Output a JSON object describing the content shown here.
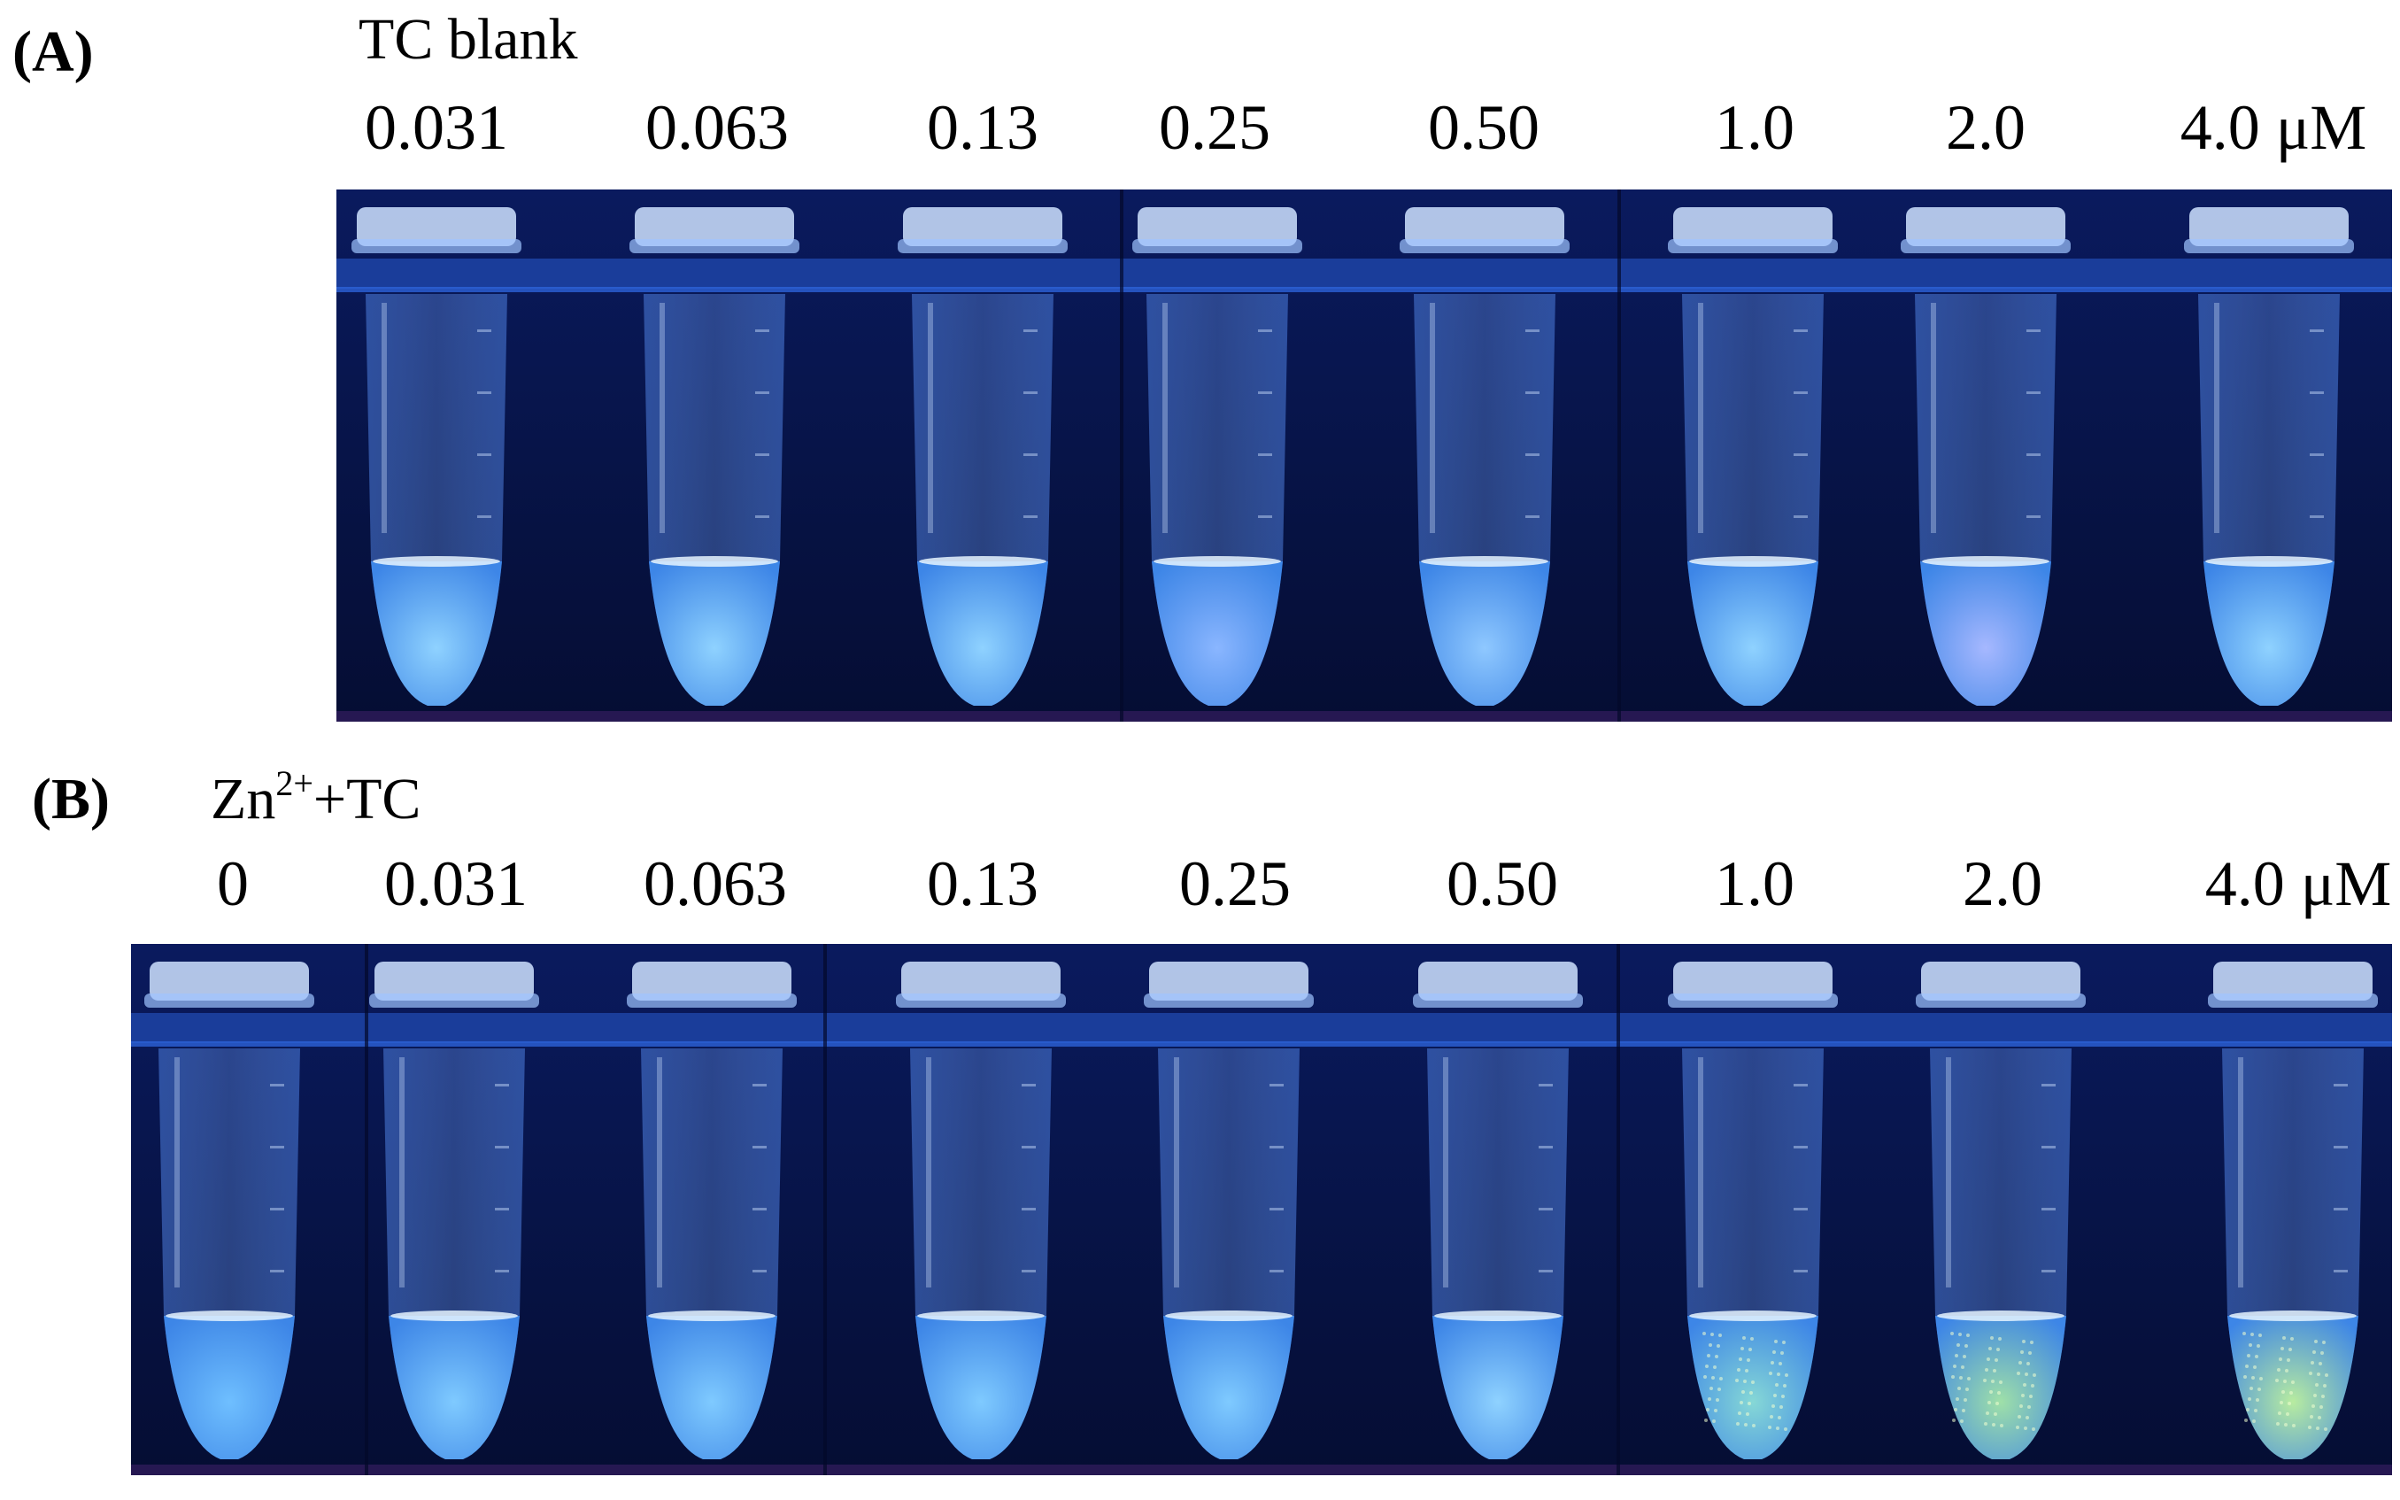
{
  "panel_a": {
    "label": "(A)",
    "caption": "TC blank",
    "concentrations": [
      "0.031",
      "0.063",
      "0.13",
      "0.25",
      "0.50",
      "1.0",
      "2.0",
      "4.0 μM"
    ],
    "tube_colors": [
      "#8fd2ff",
      "#8fd2ff",
      "#8fd2ff",
      "#8ab6ff",
      "#8fc8ff",
      "#8fd2ff",
      "#a6b8ff",
      "#8fd2ff"
    ]
  },
  "panel_b": {
    "label": "(B)",
    "caption_main": "Zn",
    "caption_sup": "2+",
    "caption_rest": "+TC",
    "concentrations": [
      "0",
      "0.031",
      "0.063",
      "0.13",
      "0.25",
      "0.50",
      "1.0",
      "2.0",
      "4.0 μM"
    ],
    "tube_colors": [
      "#6fbfff",
      "#7fcaff",
      "#7fcaff",
      "#7fcaff",
      "#7fcaff",
      "#8fd2ff",
      "#86d8d6",
      "#9fe0a8",
      "#b8eca0"
    ]
  },
  "colors": {
    "background_dark": "#06103a",
    "rack": "#1a3d9a"
  }
}
